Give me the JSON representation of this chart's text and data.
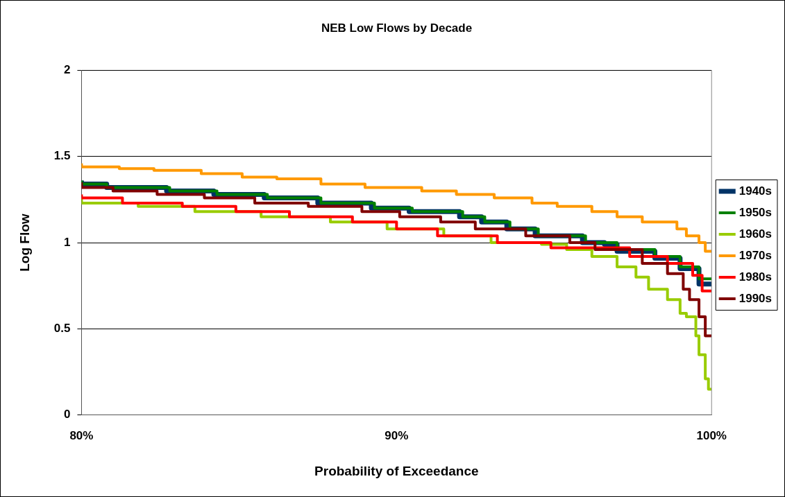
{
  "chart_data": {
    "type": "step",
    "title": "NEB Low Flows by Decade",
    "xlabel": "Probability of Exceedance",
    "ylabel": "Log Flow",
    "xlim": [
      80,
      100
    ],
    "xticks": [
      {
        "value": 80,
        "label": "80%"
      },
      {
        "value": 90,
        "label": "90%"
      },
      {
        "value": 100,
        "label": "100%"
      }
    ],
    "ylim": [
      0,
      2
    ],
    "yticks": [
      0,
      0.5,
      1,
      1.5,
      2
    ],
    "grid": "y",
    "legend": "right",
    "marker": "none",
    "line_style": "solid",
    "series": [
      {
        "name": "1940s",
        "color": "#003366",
        "x": [
          80,
          80.8,
          82.7,
          84.2,
          85.8,
          87.5,
          89.2,
          90.4,
          92.0,
          92.7,
          93.5,
          94.4,
          95.9,
          96.6,
          97.0,
          98.2,
          99.0,
          99.6,
          100
        ],
        "values": [
          1.36,
          1.34,
          1.32,
          1.3,
          1.28,
          1.26,
          1.23,
          1.2,
          1.18,
          1.15,
          1.12,
          1.08,
          1.04,
          1.0,
          0.99,
          0.95,
          0.91,
          0.85,
          0.76
        ]
      },
      {
        "name": "1950s",
        "color": "#008000",
        "x": [
          80,
          80.8,
          82.8,
          84.3,
          85.9,
          87.6,
          89.3,
          90.5,
          92.1,
          92.8,
          93.6,
          94.5,
          96.0,
          96.7,
          97.0,
          98.2,
          99.0,
          99.6,
          100
        ],
        "values": [
          1.36,
          1.34,
          1.32,
          1.3,
          1.28,
          1.26,
          1.23,
          1.2,
          1.18,
          1.15,
          1.12,
          1.08,
          1.04,
          1.0,
          1.0,
          0.96,
          0.92,
          0.86,
          0.79
        ]
      },
      {
        "name": "1960s",
        "color": "#99cc00",
        "x": [
          80,
          81.8,
          83.6,
          85.7,
          87.9,
          89.7,
          91.5,
          93.0,
          94.6,
          95.4,
          96.2,
          97.0,
          97.6,
          98.0,
          98.6,
          99.0,
          99.2,
          99.5,
          99.6,
          99.8,
          99.9,
          100
        ],
        "values": [
          1.26,
          1.23,
          1.21,
          1.18,
          1.15,
          1.12,
          1.08,
          1.04,
          1.0,
          0.99,
          0.96,
          0.92,
          0.86,
          0.8,
          0.73,
          0.67,
          0.59,
          0.57,
          0.46,
          0.35,
          0.21,
          0.15
        ]
      },
      {
        "name": "1970s",
        "color": "#ff9900",
        "x": [
          80,
          81.2,
          82.3,
          83.8,
          85.1,
          86.2,
          87.6,
          89.0,
          90.8,
          91.9,
          93.1,
          94.3,
          95.1,
          96.2,
          97.0,
          97.8,
          98.9,
          99.2,
          99.6,
          99.8,
          100
        ],
        "values": [
          1.46,
          1.44,
          1.43,
          1.42,
          1.4,
          1.38,
          1.37,
          1.34,
          1.32,
          1.3,
          1.28,
          1.26,
          1.23,
          1.21,
          1.18,
          1.15,
          1.12,
          1.08,
          1.04,
          1.0,
          0.95
        ]
      },
      {
        "name": "1980s",
        "color": "#ff0000",
        "x": [
          80,
          81.3,
          83.2,
          84.9,
          86.6,
          88.6,
          90.0,
          91.3,
          93.2,
          94.9,
          97.4,
          98.6,
          99.4,
          99.7,
          100
        ],
        "values": [
          1.28,
          1.26,
          1.23,
          1.21,
          1.18,
          1.15,
          1.12,
          1.08,
          1.04,
          1.0,
          0.97,
          0.92,
          0.88,
          0.81,
          0.72
        ]
      },
      {
        "name": "1990s",
        "color": "#800000",
        "x": [
          80,
          81.0,
          82.4,
          83.9,
          85.5,
          87.2,
          88.9,
          90.1,
          91.4,
          92.5,
          94.1,
          95.5,
          96.3,
          97.8,
          98.6,
          99.1,
          99.3,
          99.6,
          99.8,
          100
        ],
        "values": [
          1.35,
          1.32,
          1.3,
          1.28,
          1.26,
          1.23,
          1.21,
          1.18,
          1.15,
          1.12,
          1.08,
          1.04,
          1.0,
          0.96,
          0.88,
          0.82,
          0.73,
          0.67,
          0.57,
          0.46
        ]
      }
    ]
  }
}
